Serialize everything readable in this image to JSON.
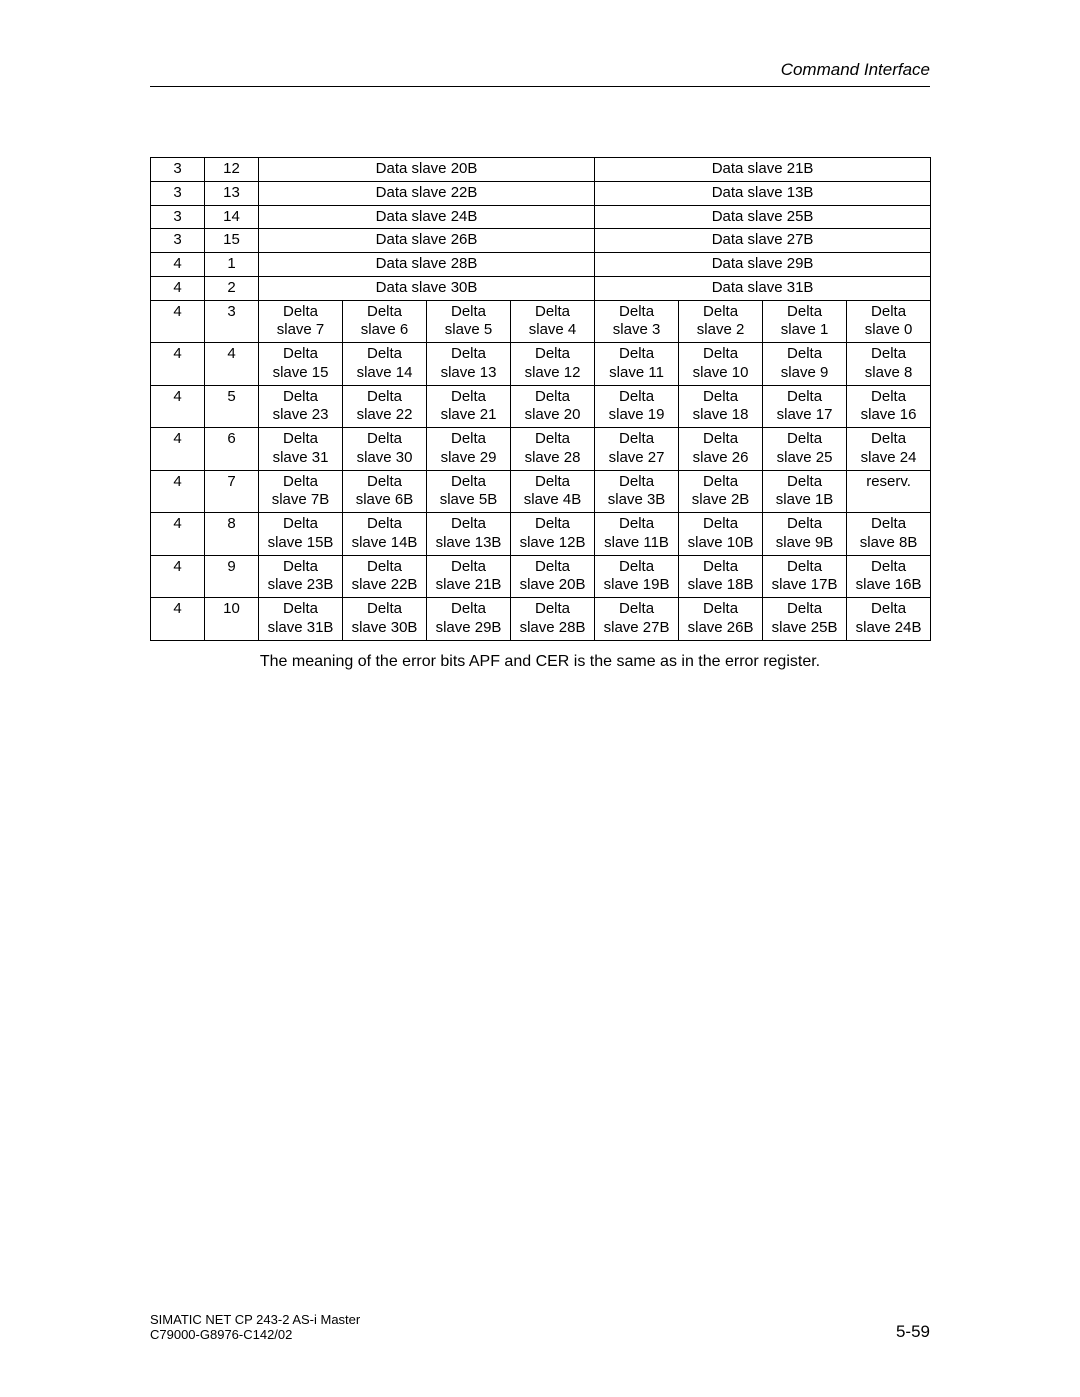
{
  "header": {
    "title": "Command Interface"
  },
  "caption": "The meaning of the error bits APF and CER is the same as in the error register.",
  "footer": {
    "line1": "SIMATIC NET CP 243-2 AS-i Master",
    "line2": "C79000-G8976-C142/02",
    "page": "5-59"
  },
  "table": {
    "rows": [
      {
        "a": "3",
        "b": "12",
        "left": "Data slave 20B",
        "right": "Data slave 21B",
        "type": "span"
      },
      {
        "a": "3",
        "b": "13",
        "left": "Data slave 22B",
        "right": "Data slave 13B",
        "type": "span"
      },
      {
        "a": "3",
        "b": "14",
        "left": "Data slave 24B",
        "right": "Data slave 25B",
        "type": "span"
      },
      {
        "a": "3",
        "b": "15",
        "left": "Data slave 26B",
        "right": "Data slave 27B",
        "type": "span"
      },
      {
        "a": "4",
        "b": "1",
        "left": "Data slave 28B",
        "right": "Data slave 29B",
        "type": "span"
      },
      {
        "a": "4",
        "b": "2",
        "left": "Data slave 30B",
        "right": "Data slave 31B",
        "type": "span"
      },
      {
        "a": "4",
        "b": "3",
        "cells": [
          "Delta slave 7",
          "Delta slave 6",
          "Delta slave 5",
          "Delta slave 4",
          "Delta slave 3",
          "Delta slave 2",
          "Delta slave 1",
          "Delta slave 0"
        ],
        "type": "cells"
      },
      {
        "a": "4",
        "b": "4",
        "cells": [
          "Delta slave 15",
          "Delta slave 14",
          "Delta slave 13",
          "Delta slave 12",
          "Delta slave 11",
          "Delta slave 10",
          "Delta slave 9",
          "Delta slave 8"
        ],
        "type": "cells"
      },
      {
        "a": "4",
        "b": "5",
        "cells": [
          "Delta slave 23",
          "Delta slave 22",
          "Delta slave 21",
          "Delta slave 20",
          "Delta slave 19",
          "Delta slave 18",
          "Delta slave 17",
          "Delta slave 16"
        ],
        "type": "cells"
      },
      {
        "a": "4",
        "b": "6",
        "cells": [
          "Delta slave 31",
          "Delta slave 30",
          "Delta slave 29",
          "Delta slave 28",
          "Delta slave 27",
          "Delta slave 26",
          "Delta slave 25",
          "Delta slave 24"
        ],
        "type": "cells"
      },
      {
        "a": "4",
        "b": "7",
        "cells": [
          "Delta slave 7B",
          "Delta slave 6B",
          "Delta slave 5B",
          "Delta slave 4B",
          "Delta slave 3B",
          "Delta slave 2B",
          "Delta slave 1B",
          "reserv."
        ],
        "type": "cells"
      },
      {
        "a": "4",
        "b": "8",
        "cells": [
          "Delta slave 15B",
          "Delta slave 14B",
          "Delta slave 13B",
          "Delta slave 12B",
          "Delta slave 11B",
          "Delta slave 10B",
          "Delta slave 9B",
          "Delta slave 8B"
        ],
        "type": "cells"
      },
      {
        "a": "4",
        "b": "9",
        "cells": [
          "Delta slave 23B",
          "Delta slave 22B",
          "Delta slave 21B",
          "Delta slave 20B",
          "Delta slave 19B",
          "Delta slave 18B",
          "Delta slave 17B",
          "Delta slave 16B"
        ],
        "type": "cells"
      },
      {
        "a": "4",
        "b": "10",
        "cells": [
          "Delta slave 31B",
          "Delta slave 30B",
          "Delta slave 29B",
          "Delta slave 28B",
          "Delta slave 27B",
          "Delta slave 26B",
          "Delta slave 25B",
          "Delta slave 24B"
        ],
        "type": "cells"
      }
    ]
  }
}
